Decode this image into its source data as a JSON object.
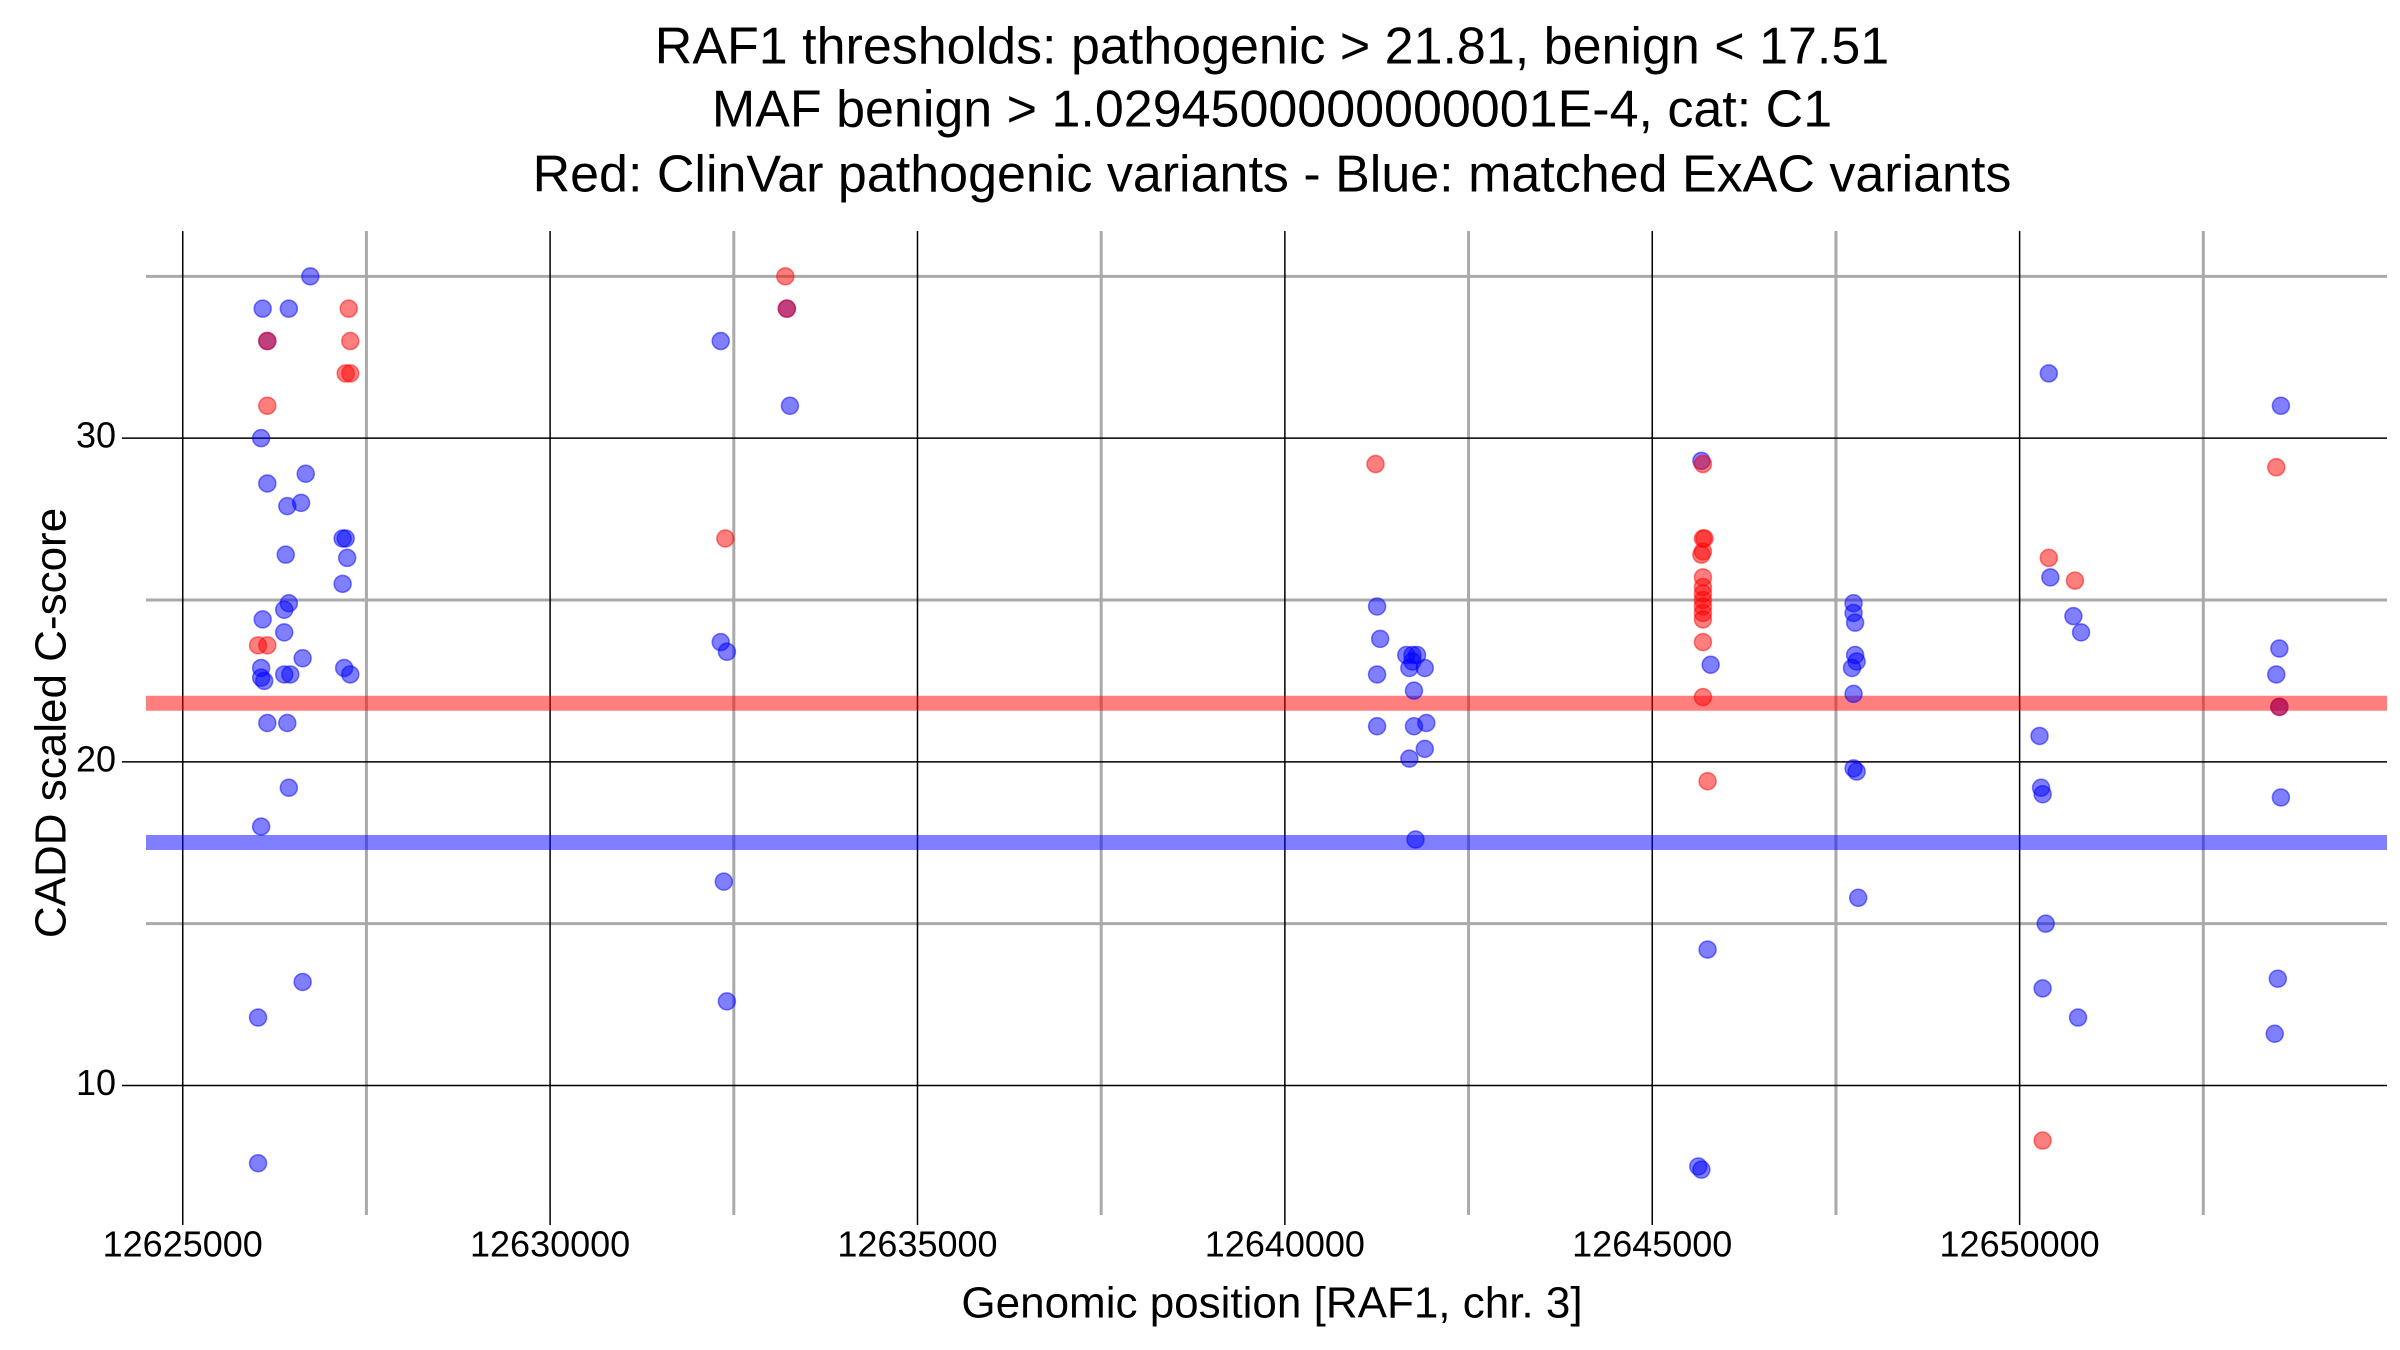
{
  "chart_data": {
    "type": "scatter",
    "title": [
      "RAF1 thresholds: pathogenic > 21.81, benign < 17.51",
      "MAF benign > 1.0294500000000001E-4, cat: C1",
      "Red: ClinVar pathogenic variants - Blue: matched ExAC variants"
    ],
    "x_label": "Genomic position [RAF1, chr. 3]",
    "y_label": "CADD scaled C-score",
    "xlim": [
      12624500,
      12655000
    ],
    "ylim": [
      6,
      36.4
    ],
    "xticks": [
      12625000,
      12630000,
      12635000,
      12640000,
      12645000,
      12650000
    ],
    "yticks": [
      10,
      20,
      30
    ],
    "x_minor_grid": [
      12627500,
      12632500,
      12637500,
      12642500,
      12647500,
      12652500
    ],
    "y_minor_grid": [
      15,
      25,
      35
    ],
    "grid": true,
    "hlines": [
      {
        "value": 21.81,
        "color": "rgba(255,0,0,0.5)"
      },
      {
        "value": 17.51,
        "color": "rgba(0,0,255,0.5)"
      }
    ],
    "series": [
      {
        "color": "rgba(0,0,255,0.5)",
        "x": [
          12626025,
          12626025,
          12626067,
          12626151,
          12626423,
          12626444,
          12626067,
          12626109,
          12626067,
          12626088,
          12626381,
          12626381,
          12626464,
          12626632,
          12626381,
          12626444,
          12626402,
          12626423,
          12626611,
          12626674,
          12626151,
          12626067,
          12626088,
          12626444,
          12626736,
          12626151,
          12626632,
          12627176,
          12627218,
          12627176,
          12627238,
          12627197,
          12627280,
          12632322,
          12632322,
          12632406,
          12632364,
          12632406,
          12633222,
          12633264,
          12641255,
          12641297,
          12641255,
          12641255,
          12641652,
          12641736,
          12641799,
          12641694,
          12641736,
          12641904,
          12641757,
          12641757,
          12641925,
          12641904,
          12641694,
          12641778,
          12645669,
          12645795,
          12645753,
          12645627,
          12645669,
          12647740,
          12647740,
          12647761,
          12647761,
          12647782,
          12647719,
          12647740,
          12647740,
          12647782,
          12647803,
          12650397,
          12650418,
          12650732,
          12650836,
          12650271,
          12650292,
          12650313,
          12650355,
          12650313,
          12650795,
          12653556,
          12653535,
          12653493,
          12653535,
          12653556,
          12653514,
          12653472
        ],
        "values": [
          7.6,
          12.1,
          18.0,
          21.2,
          21.2,
          19.2,
          22.6,
          22.5,
          22.9,
          24.4,
          24.0,
          22.7,
          22.7,
          23.2,
          24.7,
          24.9,
          26.4,
          27.9,
          28.0,
          28.9,
          28.6,
          30.0,
          34.0,
          34.0,
          35.0,
          33.0,
          13.2,
          26.9,
          26.9,
          25.5,
          26.3,
          22.9,
          22.7,
          33.0,
          23.7,
          23.4,
          16.3,
          12.6,
          34.0,
          31.0,
          24.8,
          23.8,
          22.7,
          21.1,
          23.3,
          23.3,
          23.3,
          22.9,
          23.1,
          22.9,
          22.2,
          21.1,
          21.2,
          20.4,
          20.1,
          17.6,
          29.3,
          23.0,
          14.2,
          7.5,
          7.4,
          24.9,
          24.6,
          24.3,
          23.3,
          23.1,
          22.9,
          22.1,
          19.8,
          19.7,
          15.8,
          32.0,
          25.7,
          24.5,
          24.0,
          20.8,
          19.2,
          19.0,
          15.0,
          13.0,
          12.1,
          31.0,
          23.5,
          22.7,
          21.7,
          18.9,
          13.3,
          11.6
        ]
      },
      {
        "color": "rgba(255,0,0,0.5)",
        "x": [
          12626025,
          12626151,
          12626151,
          12626151,
          12627259,
          12627280,
          12627218,
          12627280,
          12632385,
          12633201,
          12633222,
          12641234,
          12645690,
          12645690,
          12645711,
          12645690,
          12645669,
          12645690,
          12645690,
          12645690,
          12645690,
          12645690,
          12645690,
          12645690,
          12645690,
          12645690,
          12645753,
          12650397,
          12650753,
          12650313,
          12653493,
          12653535
        ],
        "values": [
          23.6,
          23.6,
          31.0,
          33.0,
          34.0,
          33.0,
          32.0,
          32.0,
          26.9,
          35.0,
          34.0,
          29.2,
          29.2,
          26.9,
          26.9,
          26.5,
          26.4,
          25.7,
          25.4,
          25.2,
          25.0,
          24.8,
          24.6,
          24.4,
          23.7,
          22.0,
          19.4,
          26.3,
          25.6,
          8.3,
          29.1,
          21.7
        ]
      }
    ]
  }
}
